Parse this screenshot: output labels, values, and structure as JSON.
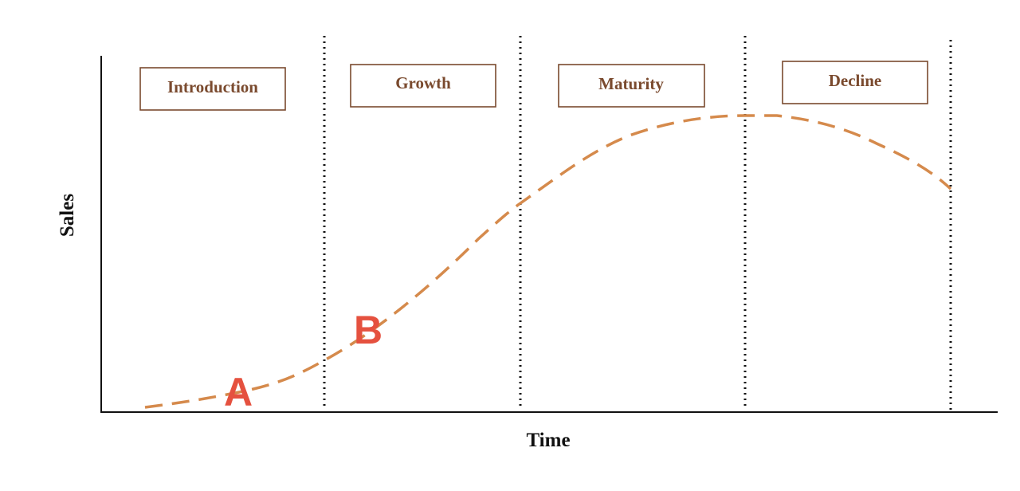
{
  "title_stages": [
    "Introduction",
    "Growth",
    "Maturity",
    "Decline"
  ],
  "axes": {
    "x_label": "Time",
    "y_label": "Sales"
  },
  "markers": [
    "A",
    "B"
  ]
}
